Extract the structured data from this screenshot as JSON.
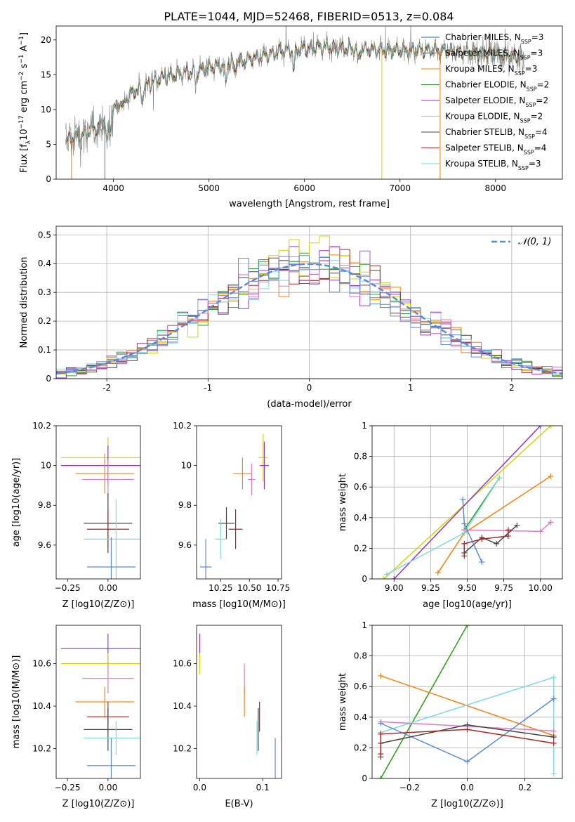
{
  "figure_title": "PLATE=1044, MJD=52468, FIBERID=0513, z=0.084",
  "model_colors": [
    "#1f77b4",
    "#9467bd",
    "#ff7f0e",
    "#2ca02c",
    "#9932cc",
    "#d4d400",
    "#444444",
    "#b22222",
    "#7fdbdb"
  ],
  "chart_data": [
    {
      "id": "spectrum",
      "type": "line",
      "title": "PLATE=1044, MJD=52468, FIBERID=0513, z=0.084",
      "xlabel": "wavelength [Angstrom, rest frame]",
      "ylabel_parts": [
        "Flux [f",
        "λ",
        "10",
        "−17",
        " erg cm",
        "−2",
        " s",
        "−1",
        " A",
        "−1",
        "]"
      ],
      "xlim": [
        3400,
        8700
      ],
      "ylim": [
        0,
        22
      ],
      "xticks": [
        4000,
        5000,
        6000,
        7000,
        8000
      ],
      "yticks": [
        0,
        5,
        10,
        15,
        20
      ],
      "observed_color": "#808080",
      "series": [
        {
          "label": "Chabrier MILES, N",
          "sub": "SSP",
          "suffix": "=3",
          "color": "#1f77b4"
        },
        {
          "label": "Salpeter MILES, N",
          "sub": "SSP",
          "suffix": "=3",
          "color": "#9467bd"
        },
        {
          "label": "Kroupa MILES, N",
          "sub": "SSP",
          "suffix": "=3",
          "color": "#ff7f0e"
        },
        {
          "label": "Chabrier ELODIE, N",
          "sub": "SSP",
          "suffix": "=2",
          "color": "#2ca02c"
        },
        {
          "label": "Salpeter ELODIE, N",
          "sub": "SSP",
          "suffix": "=2",
          "color": "#9932cc"
        },
        {
          "label": "Kroupa ELODIE, N",
          "sub": "SSP",
          "suffix": "=2",
          "color": "#d4d400"
        },
        {
          "label": "Chabrier STELIB, N",
          "sub": "SSP",
          "suffix": "=4",
          "color": "#444444"
        },
        {
          "label": "Salpeter STELIB, N",
          "sub": "SSP",
          "suffix": "=4",
          "color": "#b22222"
        },
        {
          "label": "Kroupa STELIB, N",
          "sub": "SSP",
          "suffix": "=3",
          "color": "#7fdbdb"
        }
      ],
      "continuum_anchors": [
        [
          3500,
          5.5
        ],
        [
          3700,
          6.5
        ],
        [
          3900,
          8
        ],
        [
          4000,
          10
        ],
        [
          4200,
          12.5
        ],
        [
          4500,
          14.5
        ],
        [
          5000,
          16
        ],
        [
          5500,
          17.5
        ],
        [
          5800,
          18.5
        ],
        [
          6200,
          19
        ],
        [
          6800,
          18.5
        ],
        [
          7400,
          18.5
        ],
        [
          8000,
          18
        ],
        [
          8300,
          17.5
        ]
      ],
      "grid": false,
      "legend_position": "right"
    },
    {
      "id": "residuals",
      "type": "histogram",
      "xlabel": "(data-model)/error",
      "ylabel": "Normed distribution",
      "xlim": [
        -2.5,
        2.5
      ],
      "ylim": [
        0,
        0.53
      ],
      "xticks": [
        -2,
        -1,
        0,
        1,
        2
      ],
      "yticks": [
        0,
        0.1,
        0.2,
        0.3,
        0.4,
        0.5
      ],
      "bin_width": 0.1,
      "legend_label": "𝒩(0, 1)",
      "reference_color": "#5b8ad8",
      "grid": true,
      "legend_position": "top-right"
    },
    {
      "id": "age-vs-z",
      "type": "errorbar",
      "xlabel": "Z [log10(Z/Z⊙)]",
      "ylabel": "age [log10(age/yr)]",
      "xlim": [
        -0.32,
        0.2
      ],
      "ylim": [
        9.43,
        10.2
      ],
      "xticks": [
        -0.25,
        0,
        0.25
      ],
      "xtick_labels": [
        "−0.25",
        "0.00",
        ""
      ],
      "yticks": [
        9.6,
        9.8,
        10.0,
        10.2
      ],
      "points": [
        {
          "x": 0.0,
          "y": 10.04,
          "xerr": 0.29,
          "yerr": 0.1,
          "color": "#d4d400"
        },
        {
          "x": 0.0,
          "y": 10.0,
          "xerr": 0.29,
          "yerr": 0.1,
          "color": "#9932cc"
        },
        {
          "x": -0.02,
          "y": 9.96,
          "xerr": 0.18,
          "yerr": 0.1,
          "color": "#ff7f0e"
        },
        {
          "x": 0.0,
          "y": 9.93,
          "xerr": 0.16,
          "yerr": 0.1,
          "color": "#e377c2"
        },
        {
          "x": 0.0,
          "y": 9.71,
          "xerr": 0.15,
          "yerr": 0.15,
          "color": "#444444"
        },
        {
          "x": 0.0,
          "y": 9.68,
          "xerr": 0.13,
          "yerr": 0.1,
          "color": "#b22222"
        },
        {
          "x": 0.05,
          "y": 9.63,
          "xerr": 0.2,
          "yerr": 0.2,
          "color": "#7fdbdb"
        },
        {
          "x": 0.02,
          "y": 9.49,
          "xerr": 0.15,
          "yerr": 0.15,
          "color": "#5b8ad8"
        }
      ]
    },
    {
      "id": "age-vs-mass",
      "type": "errorbar",
      "xlabel": "mass [log10(M/M⊙)]",
      "ylabel": "",
      "xlim": [
        10.04,
        10.78
      ],
      "ylim": [
        9.43,
        10.2
      ],
      "xticks": [
        10.25,
        10.5,
        10.75
      ],
      "xtick_labels": [
        "10.25",
        "10.50",
        "10.75"
      ],
      "yticks": [
        9.6,
        9.8,
        10.0,
        10.2
      ],
      "points": [
        {
          "x": 10.62,
          "y": 10.04,
          "xerr": 0.04,
          "yerr": 0.12,
          "color": "#d4d400"
        },
        {
          "x": 10.63,
          "y": 10.0,
          "xerr": 0.04,
          "yerr": 0.12,
          "color": "#9932cc"
        },
        {
          "x": 10.44,
          "y": 9.96,
          "xerr": 0.08,
          "yerr": 0.08,
          "color": "#ff7f0e"
        },
        {
          "x": 10.52,
          "y": 9.93,
          "xerr": 0.03,
          "yerr": 0.08,
          "color": "#e377c2"
        },
        {
          "x": 10.3,
          "y": 9.71,
          "xerr": 0.07,
          "yerr": 0.08,
          "color": "#444444"
        },
        {
          "x": 10.38,
          "y": 9.68,
          "xerr": 0.06,
          "yerr": 0.1,
          "color": "#b22222"
        },
        {
          "x": 10.25,
          "y": 9.63,
          "xerr": 0.05,
          "yerr": 0.1,
          "color": "#7fdbdb"
        },
        {
          "x": 10.12,
          "y": 9.49,
          "xerr": 0.05,
          "yerr": 0.14,
          "color": "#5b8ad8"
        }
      ]
    },
    {
      "id": "weight-vs-age",
      "type": "line",
      "xlabel": "age [log10(age/yr)]",
      "ylabel": "mass weight",
      "xlim": [
        8.85,
        10.15
      ],
      "ylim": [
        0,
        1
      ],
      "xticks": [
        9.0,
        9.25,
        9.5,
        9.75,
        10.0
      ],
      "xtick_labels": [
        "9.00",
        "9.25",
        "9.50",
        "9.75",
        "10.00"
      ],
      "yticks": [
        0,
        0.2,
        0.4,
        0.6,
        0.8,
        1.0
      ],
      "series": [
        {
          "color": "#d4d400",
          "points": [
            [
              8.93,
              0.0
            ],
            [
              10.07,
              1.0
            ]
          ]
        },
        {
          "color": "#9932cc",
          "points": [
            [
              9.0,
              0.0
            ],
            [
              10.0,
              1.0
            ]
          ]
        },
        {
          "color": "#2ca02c",
          "points": [
            [
              9.48,
              0.32
            ],
            [
              9.72,
              0.66
            ]
          ]
        },
        {
          "color": "#ff7f0e",
          "points": [
            [
              9.3,
              0.04
            ],
            [
              9.48,
              0.3
            ],
            [
              10.07,
              0.67
            ]
          ]
        },
        {
          "color": "#e377c2",
          "points": [
            [
              9.48,
              0.32
            ],
            [
              10.0,
              0.31
            ],
            [
              10.07,
              0.37
            ]
          ]
        },
        {
          "color": "#444444",
          "points": [
            [
              9.48,
              0.17
            ],
            [
              9.6,
              0.27
            ],
            [
              9.7,
              0.23
            ],
            [
              9.84,
              0.35
            ]
          ]
        },
        {
          "color": "#b22222",
          "points": [
            [
              9.48,
              0.15
            ],
            [
              9.48,
              0.23
            ],
            [
              9.6,
              0.26
            ],
            [
              9.78,
              0.28
            ],
            [
              9.78,
              0.32
            ]
          ]
        },
        {
          "color": "#7fdbdb",
          "points": [
            [
              8.95,
              0.03
            ],
            [
              9.48,
              0.3
            ],
            [
              9.72,
              0.66
            ]
          ]
        },
        {
          "color": "#5b8ad8",
          "points": [
            [
              9.47,
              0.52
            ],
            [
              9.48,
              0.36
            ],
            [
              9.6,
              0.11
            ]
          ]
        }
      ]
    },
    {
      "id": "mass-vs-z",
      "type": "errorbar",
      "xlabel": "Z [log10(Z/Z⊙)]",
      "ylabel": "mass [log10(M/M⊙)]",
      "xlim": [
        -0.32,
        0.2
      ],
      "ylim": [
        10.06,
        10.78
      ],
      "xticks": [
        -0.25,
        0,
        0.25
      ],
      "xtick_labels": [
        "−0.25",
        "0.00",
        ""
      ],
      "yticks": [
        10.2,
        10.4,
        10.6
      ],
      "points": [
        {
          "x": 0.0,
          "y": 10.67,
          "xerr": 0.29,
          "yerr": 0.07,
          "color": "#9932cc"
        },
        {
          "x": 0.0,
          "y": 10.6,
          "xerr": 0.29,
          "yerr": 0.05,
          "color": "#d4d400"
        },
        {
          "x": 0.0,
          "y": 10.53,
          "xerr": 0.16,
          "yerr": 0.07,
          "color": "#e377c2"
        },
        {
          "x": -0.02,
          "y": 10.42,
          "xerr": 0.18,
          "yerr": 0.07,
          "color": "#ff7f0e"
        },
        {
          "x": 0.0,
          "y": 10.35,
          "xerr": 0.13,
          "yerr": 0.07,
          "color": "#b22222"
        },
        {
          "x": 0.0,
          "y": 10.29,
          "xerr": 0.15,
          "yerr": 0.1,
          "color": "#444444"
        },
        {
          "x": 0.05,
          "y": 10.25,
          "xerr": 0.2,
          "yerr": 0.08,
          "color": "#7fdbdb"
        },
        {
          "x": 0.02,
          "y": 10.12,
          "xerr": 0.15,
          "yerr": 0.13,
          "color": "#5b8ad8"
        }
      ]
    },
    {
      "id": "mass-vs-ebv",
      "type": "errorbar",
      "xlabel": "E(B-V)",
      "ylabel": "",
      "xlim": [
        -0.005,
        0.13
      ],
      "ylim": [
        10.06,
        10.78
      ],
      "xticks": [
        0.0,
        0.1
      ],
      "xtick_labels": [
        "0.0",
        "0.1"
      ],
      "yticks": [
        10.2,
        10.4,
        10.6
      ],
      "points": [
        {
          "x": 0.0,
          "y": 10.67,
          "xerr": 0.0,
          "yerr": 0.07,
          "color": "#9932cc"
        },
        {
          "x": 0.0,
          "y": 10.6,
          "xerr": 0.0,
          "yerr": 0.05,
          "color": "#d4d400"
        },
        {
          "x": 0.071,
          "y": 10.53,
          "xerr": 0.0,
          "yerr": 0.07,
          "color": "#e377c2"
        },
        {
          "x": 0.071,
          "y": 10.42,
          "xerr": 0.0,
          "yerr": 0.07,
          "color": "#ff7f0e"
        },
        {
          "x": 0.095,
          "y": 10.35,
          "xerr": 0.0,
          "yerr": 0.07,
          "color": "#b22222"
        },
        {
          "x": 0.093,
          "y": 10.29,
          "xerr": 0.0,
          "yerr": 0.1,
          "color": "#444444"
        },
        {
          "x": 0.091,
          "y": 10.25,
          "xerr": 0.0,
          "yerr": 0.08,
          "color": "#7fdbdb"
        },
        {
          "x": 0.12,
          "y": 10.12,
          "xerr": 0.0,
          "yerr": 0.13,
          "color": "#5b8ad8"
        }
      ]
    },
    {
      "id": "weight-vs-z",
      "type": "line",
      "xlabel": "Z [log10(Z/Z⊙)]",
      "ylabel": "mass weight",
      "xlim": [
        -0.33,
        0.33
      ],
      "ylim": [
        0,
        1
      ],
      "xticks": [
        -0.2,
        0.0,
        0.2
      ],
      "xtick_labels": [
        "−0.2",
        "0.0",
        "0.2"
      ],
      "yticks": [
        0,
        0.2,
        0.4,
        0.6,
        0.8,
        1.0
      ],
      "series": [
        {
          "color": "#d4d400",
          "points": [
            [
              -0.3,
              0.0
            ],
            [
              0.0,
              1.0
            ]
          ]
        },
        {
          "color": "#2ca02c",
          "points": [
            [
              -0.3,
              0.0
            ],
            [
              0.0,
              1.0
            ]
          ]
        },
        {
          "color": "#ff7f0e",
          "points": [
            [
              -0.3,
              0.67
            ],
            [
              0.3,
              0.28
            ]
          ]
        },
        {
          "color": "#7fdbdb",
          "points": [
            [
              -0.3,
              0.3
            ],
            [
              0.3,
              0.66
            ],
            [
              0.3,
              0.03
            ]
          ]
        },
        {
          "color": "#e377c2",
          "points": [
            [
              -0.3,
              0.37
            ],
            [
              0.3,
              0.31
            ]
          ]
        },
        {
          "color": "#5b8ad8",
          "points": [
            [
              -0.3,
              0.36
            ],
            [
              0.0,
              0.11
            ],
            [
              0.3,
              0.52
            ]
          ]
        },
        {
          "color": "#444444",
          "points": [
            [
              -0.3,
              0.14
            ],
            [
              -0.3,
              0.23
            ],
            [
              0.0,
              0.35
            ],
            [
              0.3,
              0.27
            ]
          ]
        },
        {
          "color": "#b22222",
          "points": [
            [
              -0.3,
              0.16
            ],
            [
              -0.3,
              0.29
            ],
            [
              0.0,
              0.32
            ],
            [
              0.3,
              0.23
            ]
          ]
        }
      ]
    }
  ]
}
